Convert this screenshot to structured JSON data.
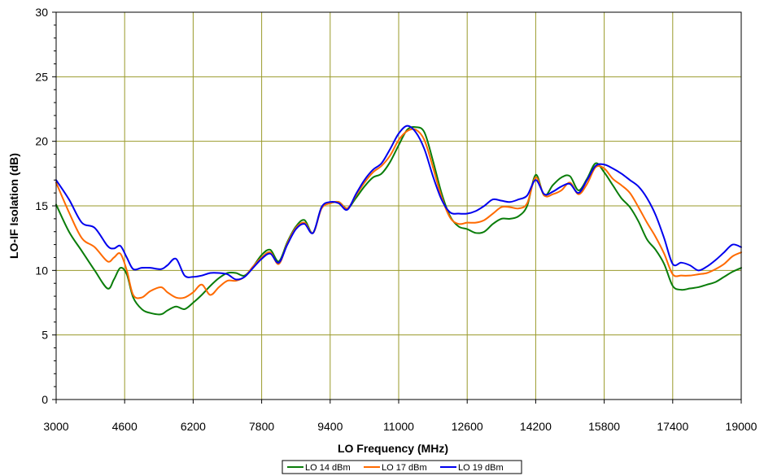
{
  "chart_data": {
    "type": "line",
    "title": "",
    "xlabel": "LO Frequency (MHz)",
    "ylabel": "LO-IF Isolation (dB)",
    "xlim": [
      3000,
      19000
    ],
    "ylim": [
      0,
      30
    ],
    "xticks": [
      3000,
      4600,
      6200,
      7800,
      9400,
      11000,
      12600,
      14200,
      15800,
      17400,
      19000
    ],
    "yticks": [
      0,
      5,
      10,
      15,
      20,
      25,
      30
    ],
    "grid": true,
    "plot_background": "#ffffff",
    "grid_color": "#9a9a2a",
    "legend_position": "bottom-center",
    "series": [
      {
        "name": "LO 14 dBm",
        "color": "#0a7d0a",
        "x": [
          3000,
          3300,
          3600,
          3900,
          4200,
          4350,
          4500,
          4650,
          4800,
          5000,
          5200,
          5450,
          5600,
          5800,
          6000,
          6200,
          6400,
          6600,
          6800,
          7000,
          7200,
          7400,
          7600,
          7800,
          8000,
          8200,
          8400,
          8600,
          8800,
          9000,
          9200,
          9400,
          9600,
          9800,
          10000,
          10200,
          10400,
          10600,
          10800,
          11000,
          11200,
          11400,
          11600,
          11800,
          12000,
          12200,
          12400,
          12600,
          12800,
          13000,
          13200,
          13400,
          13600,
          13800,
          14000,
          14200,
          14400,
          14600,
          14800,
          15000,
          15200,
          15400,
          15600,
          15800,
          16000,
          16200,
          16400,
          16600,
          16800,
          17000,
          17200,
          17400,
          17600,
          17800,
          18000,
          18200,
          18400,
          18600,
          18800,
          19000
        ],
        "values": [
          15.1,
          13.0,
          11.5,
          10.0,
          8.6,
          9.3,
          10.2,
          9.7,
          7.9,
          7.0,
          6.7,
          6.6,
          6.9,
          7.2,
          7.0,
          7.5,
          8.1,
          8.8,
          9.4,
          9.8,
          9.8,
          9.6,
          10.3,
          11.2,
          11.6,
          10.7,
          12.2,
          13.4,
          13.9,
          12.9,
          14.9,
          15.2,
          15.3,
          14.8,
          15.6,
          16.5,
          17.2,
          17.5,
          18.4,
          19.7,
          20.9,
          21.1,
          20.7,
          18.5,
          16.0,
          14.2,
          13.4,
          13.2,
          12.9,
          13.0,
          13.6,
          14.0,
          14.0,
          14.2,
          15.0,
          17.4,
          15.8,
          16.6,
          17.2,
          17.3,
          16.2,
          17.1,
          18.3,
          17.6,
          16.6,
          15.6,
          14.9,
          13.8,
          12.4,
          11.6,
          10.5,
          8.8,
          8.5,
          8.6,
          8.7,
          8.9,
          9.1,
          9.5,
          9.9,
          10.2
        ]
      },
      {
        "name": "LO 17 dBm",
        "color": "#ff6a00",
        "x": [
          3000,
          3300,
          3600,
          3900,
          4200,
          4350,
          4500,
          4650,
          4800,
          5000,
          5200,
          5450,
          5600,
          5800,
          6000,
          6200,
          6400,
          6600,
          6800,
          7000,
          7200,
          7400,
          7600,
          7800,
          8000,
          8200,
          8400,
          8600,
          8800,
          9000,
          9200,
          9400,
          9600,
          9800,
          10000,
          10200,
          10400,
          10600,
          10800,
          11000,
          11200,
          11400,
          11600,
          11800,
          12000,
          12200,
          12400,
          12600,
          12800,
          13000,
          13200,
          13400,
          13600,
          13800,
          14000,
          14200,
          14400,
          14600,
          14800,
          15000,
          15200,
          15400,
          15600,
          15800,
          16000,
          16200,
          16400,
          16600,
          16800,
          17000,
          17200,
          17400,
          17600,
          17800,
          18000,
          18200,
          18400,
          18600,
          18800,
          19000
        ],
        "values": [
          16.8,
          14.5,
          12.5,
          11.8,
          10.7,
          11.0,
          11.3,
          10.0,
          8.1,
          7.9,
          8.4,
          8.7,
          8.3,
          7.9,
          7.9,
          8.3,
          8.9,
          8.1,
          8.7,
          9.2,
          9.2,
          9.5,
          10.3,
          11.0,
          11.4,
          10.5,
          12.1,
          13.3,
          13.7,
          12.9,
          14.8,
          15.2,
          15.3,
          14.8,
          15.8,
          16.8,
          17.6,
          18.1,
          18.9,
          20.1,
          20.8,
          20.9,
          20.1,
          18.0,
          15.7,
          14.1,
          13.6,
          13.7,
          13.7,
          13.9,
          14.4,
          14.9,
          14.9,
          14.8,
          15.2,
          17.2,
          15.8,
          15.9,
          16.2,
          16.8,
          15.9,
          16.7,
          18.0,
          17.9,
          17.1,
          16.6,
          16.0,
          14.9,
          13.7,
          12.6,
          11.3,
          9.7,
          9.6,
          9.6,
          9.7,
          9.8,
          10.1,
          10.5,
          11.1,
          11.4
        ]
      },
      {
        "name": "LO 19 dBm",
        "color": "#0000ee",
        "x": [
          3000,
          3300,
          3600,
          3900,
          4200,
          4350,
          4500,
          4650,
          4800,
          5000,
          5200,
          5450,
          5600,
          5800,
          6000,
          6200,
          6400,
          6600,
          6800,
          7000,
          7200,
          7400,
          7600,
          7800,
          8000,
          8200,
          8400,
          8600,
          8800,
          9000,
          9200,
          9400,
          9600,
          9800,
          10000,
          10200,
          10400,
          10600,
          10800,
          11000,
          11200,
          11400,
          11600,
          11800,
          12000,
          12200,
          12400,
          12600,
          12800,
          13000,
          13200,
          13400,
          13600,
          13800,
          14000,
          14200,
          14400,
          14600,
          14800,
          15000,
          15200,
          15400,
          15600,
          15800,
          16000,
          16200,
          16400,
          16600,
          16800,
          17000,
          17200,
          17400,
          17600,
          17800,
          18000,
          18200,
          18400,
          18600,
          18800,
          19000
        ],
        "values": [
          17.0,
          15.5,
          13.7,
          13.3,
          11.9,
          11.7,
          11.9,
          11.0,
          10.1,
          10.2,
          10.2,
          10.1,
          10.4,
          10.9,
          9.6,
          9.5,
          9.6,
          9.8,
          9.8,
          9.7,
          9.3,
          9.5,
          10.2,
          10.9,
          11.3,
          10.6,
          12.0,
          13.2,
          13.6,
          12.9,
          14.9,
          15.3,
          15.2,
          14.7,
          15.9,
          17.0,
          17.8,
          18.3,
          19.4,
          20.6,
          21.2,
          20.7,
          19.4,
          17.3,
          15.5,
          14.5,
          14.4,
          14.4,
          14.6,
          15.0,
          15.5,
          15.4,
          15.3,
          15.5,
          15.8,
          17.0,
          15.9,
          16.1,
          16.5,
          16.7,
          16.0,
          17.0,
          18.1,
          18.2,
          17.9,
          17.5,
          17.0,
          16.5,
          15.6,
          14.3,
          12.5,
          10.5,
          10.6,
          10.4,
          10.0,
          10.3,
          10.8,
          11.4,
          12.0,
          11.8
        ]
      }
    ]
  }
}
